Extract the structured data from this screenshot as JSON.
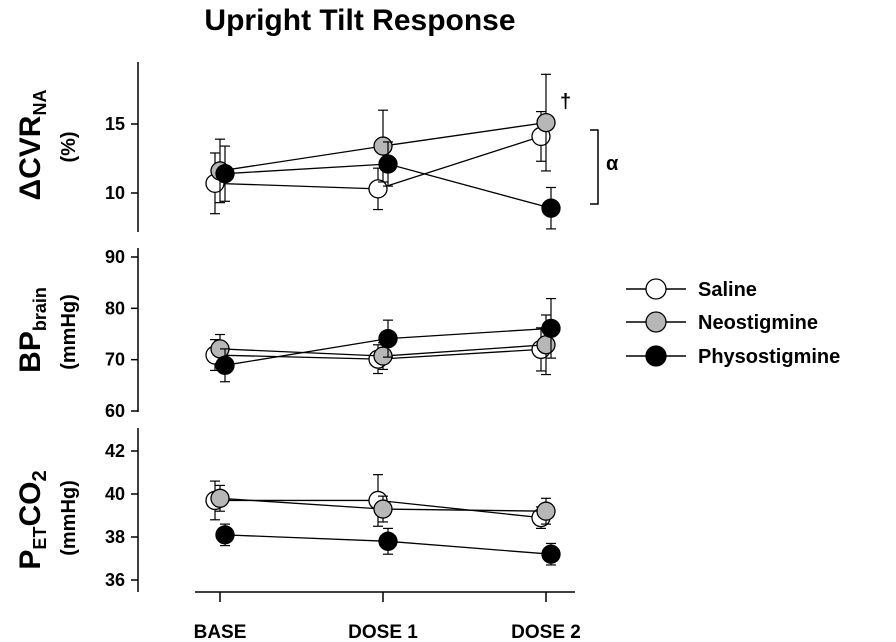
{
  "title": "Upright Tilt Response",
  "chart_data": [
    {
      "type": "line",
      "categories": [
        "BASE",
        "DOSE 1",
        "DOSE 2"
      ],
      "ylabel_main": "ΔCVR",
      "ylabel_sub": "NA",
      "ylabel_unit": "(%)",
      "yticks": [
        10,
        15
      ],
      "ylim": [
        7.5,
        19
      ],
      "series": [
        {
          "name": "Saline",
          "values": [
            10.7,
            10.3,
            14.1
          ],
          "err": [
            2.2,
            1.5,
            1.8
          ]
        },
        {
          "name": "Neostigmine",
          "values": [
            11.6,
            13.4,
            15.1
          ],
          "err": [
            2.3,
            2.6,
            3.5
          ]
        },
        {
          "name": "Physostigmine",
          "values": [
            11.4,
            12.1,
            8.9
          ],
          "err": [
            2.0,
            1.6,
            1.5
          ]
        }
      ],
      "annotations": {
        "dagger": "†",
        "alpha": "α"
      }
    },
    {
      "type": "line",
      "categories": [
        "BASE",
        "DOSE 1",
        "DOSE 2"
      ],
      "ylabel_main": "BP",
      "ylabel_sub": "brain",
      "ylabel_unit": "(mmHg)",
      "yticks": [
        60,
        70,
        80,
        90
      ],
      "ylim": [
        60,
        91
      ],
      "series": [
        {
          "name": "Saline",
          "values": [
            70.9,
            70.1,
            72.0
          ],
          "err": [
            3.0,
            2.8,
            4.2
          ]
        },
        {
          "name": "Neostigmine",
          "values": [
            72.1,
            70.7,
            72.9
          ],
          "err": [
            2.8,
            2.6,
            5.8
          ]
        },
        {
          "name": "Physostigmine",
          "values": [
            68.9,
            74.1,
            76.1
          ],
          "err": [
            3.2,
            3.6,
            5.8
          ]
        }
      ]
    },
    {
      "type": "line",
      "categories": [
        "BASE",
        "DOSE 1",
        "DOSE 2"
      ],
      "ylabel_main": "P",
      "ylabel_sub": "ET",
      "ylabel_rest": "CO",
      "ylabel_sub2": "2",
      "ylabel_unit": "(mmHg)",
      "yticks": [
        36,
        38,
        40,
        42
      ],
      "ylim": [
        35.8,
        42.5
      ],
      "series": [
        {
          "name": "Saline",
          "values": [
            39.7,
            39.7,
            38.9
          ],
          "err": [
            0.9,
            1.2,
            0.5
          ]
        },
        {
          "name": "Neostigmine",
          "values": [
            39.8,
            39.3,
            39.2
          ],
          "err": [
            0.6,
            0.6,
            0.6
          ]
        },
        {
          "name": "Physostigmine",
          "values": [
            38.1,
            37.8,
            37.2
          ],
          "err": [
            0.5,
            0.6,
            0.5
          ]
        }
      ]
    }
  ],
  "legend": [
    {
      "name": "Saline",
      "fill": "#ffffff"
    },
    {
      "name": "Neostigmine",
      "fill": "#b7b7b7"
    },
    {
      "name": "Physostigmine",
      "fill": "#000000"
    }
  ]
}
